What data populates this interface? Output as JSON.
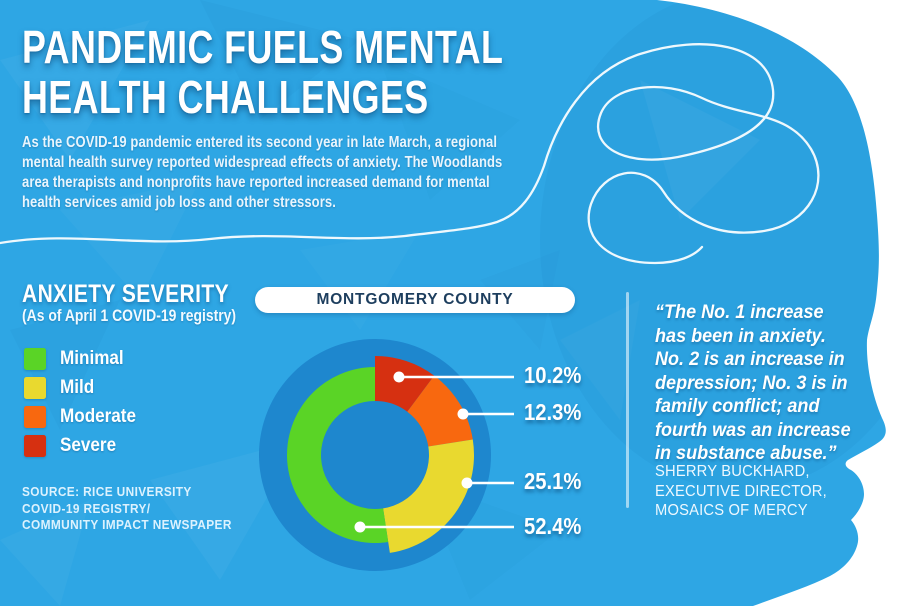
{
  "header": {
    "title_lines": [
      "PANDEMIC FUELS MENTAL",
      "HEALTH CHALLENGES"
    ],
    "intro_lines": [
      "As the COVID-19 pandemic entered its second year in late March, a regional",
      "mental health survey reported widespread effects of anxiety. The Woodlands",
      "area therapists and nonprofits have reported increased demand for mental",
      "health services amid job loss and other stressors."
    ]
  },
  "panel": {
    "title": "ANXIETY SEVERITY",
    "subtitle": "(As of April 1 COVID-19 registry)"
  },
  "legend": {
    "items": [
      {
        "label": "Minimal",
        "color": "#5ad426"
      },
      {
        "label": "Mild",
        "color": "#e9d92f"
      },
      {
        "label": "Moderate",
        "color": "#f8680f"
      },
      {
        "label": "Severe",
        "color": "#d63011"
      }
    ]
  },
  "source": {
    "lines": [
      "SOURCE: RICE UNIVERSITY",
      "COVID-19 REGISTRY/",
      "COMMUNITY IMPACT NEWSPAPER"
    ]
  },
  "chart_data": {
    "type": "pie",
    "variant": "donut",
    "title": "MONTGOMERY COUNTY",
    "unit": "percent of registry respondents",
    "direction": "clockwise",
    "start_angle_deg": 0,
    "legend_position": "left",
    "slices": [
      {
        "label": "Severe",
        "value": 10.2,
        "display": "10.2%",
        "color": "#d63011"
      },
      {
        "label": "Moderate",
        "value": 12.3,
        "display": "12.3%",
        "color": "#f8680f"
      },
      {
        "label": "Mild",
        "value": 25.1,
        "display": "25.1%",
        "color": "#e9d92f"
      },
      {
        "label": "Minimal",
        "value": 52.4,
        "display": "52.4%",
        "color": "#5ad426"
      }
    ]
  },
  "quote": {
    "lines": [
      "“The No. 1 increase",
      "has been in anxiety.",
      "No. 2 is an increase in",
      "depression; No. 3 is in",
      "family conflict; and",
      "fourth was an increase",
      "in substance abuse.”"
    ],
    "attribution_lines": [
      "SHERRY BUCKHARD,",
      "EXECUTIVE DIRECTOR,",
      "MOSAICS OF MERCY"
    ]
  },
  "colors": {
    "background": "#2ea6e4",
    "chart_backdrop": "#1e87ce",
    "headline_text": "#ffffff",
    "navy_text": "#1d3e5e",
    "thread_line": "#ffffff"
  }
}
